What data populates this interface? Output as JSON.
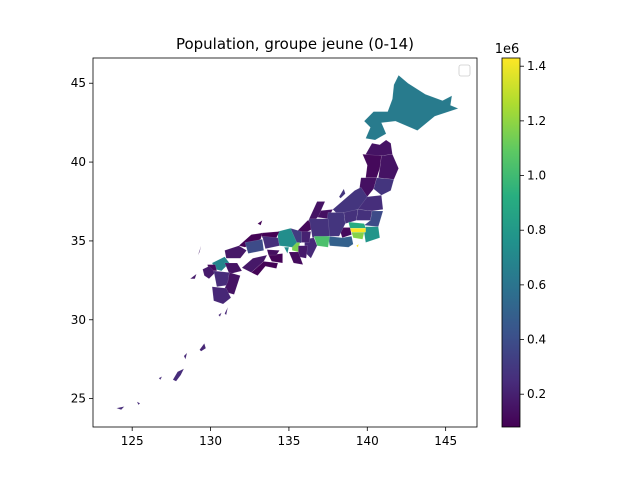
{
  "chart_data": {
    "type": "choropleth-map",
    "title": "Population, groupe jeune (0-14)",
    "xlim": [
      122.5,
      147.0
    ],
    "ylim": [
      23.2,
      46.6
    ],
    "x_ticks": [
      125,
      130,
      135,
      140,
      145
    ],
    "y_ticks": [
      25,
      30,
      35,
      40,
      45
    ],
    "colorbar": {
      "colormap": "viridis",
      "min": 80000,
      "max": 1430000,
      "ticks": [
        0.2,
        0.4,
        0.6,
        0.8,
        1.0,
        1.2,
        1.4
      ],
      "offset_text": "1e6"
    },
    "legend": {
      "position": "top-right",
      "entries": []
    },
    "regions": [
      {
        "name": "Hokkaido",
        "value": 640000
      },
      {
        "name": "Aomori",
        "value": 150000
      },
      {
        "name": "Iwate",
        "value": 150000
      },
      {
        "name": "Akita",
        "value": 110000
      },
      {
        "name": "Miyagi",
        "value": 290000
      },
      {
        "name": "Yamagata",
        "value": 140000
      },
      {
        "name": "Fukushima",
        "value": 260000
      },
      {
        "name": "Niigata",
        "value": 290000
      },
      {
        "name": "Ibaraki",
        "value": 390000
      },
      {
        "name": "Tochigi",
        "value": 270000
      },
      {
        "name": "Gunma",
        "value": 270000
      },
      {
        "name": "Saitama",
        "value": 920000
      },
      {
        "name": "Chiba",
        "value": 780000
      },
      {
        "name": "Tokyo",
        "value": 1430000
      },
      {
        "name": "Kanagawa",
        "value": 1180000
      },
      {
        "name": "Toyama",
        "value": 140000
      },
      {
        "name": "Ishikawa",
        "value": 150000
      },
      {
        "name": "Fukui",
        "value": 110000
      },
      {
        "name": "Yamanashi",
        "value": 110000
      },
      {
        "name": "Nagano",
        "value": 290000
      },
      {
        "name": "Gifu",
        "value": 280000
      },
      {
        "name": "Shizuoka",
        "value": 500000
      },
      {
        "name": "Aichi",
        "value": 1040000
      },
      {
        "name": "Mie",
        "value": 240000
      },
      {
        "name": "Shiga",
        "value": 210000
      },
      {
        "name": "Kyoto",
        "value": 320000
      },
      {
        "name": "Osaka",
        "value": 1160000
      },
      {
        "name": "Hyogo",
        "value": 740000
      },
      {
        "name": "Nara",
        "value": 180000
      },
      {
        "name": "Wakayama",
        "value": 120000
      },
      {
        "name": "Tottori",
        "value": 80000
      },
      {
        "name": "Shimane",
        "value": 90000
      },
      {
        "name": "Okayama",
        "value": 260000
      },
      {
        "name": "Hiroshima",
        "value": 390000
      },
      {
        "name": "Yamaguchi",
        "value": 170000
      },
      {
        "name": "Tokushima",
        "value": 90000
      },
      {
        "name": "Kagawa",
        "value": 130000
      },
      {
        "name": "Ehime",
        "value": 170000
      },
      {
        "name": "Kochi",
        "value": 90000
      },
      {
        "name": "Fukuoka",
        "value": 690000
      },
      {
        "name": "Saga",
        "value": 120000
      },
      {
        "name": "Nagasaki",
        "value": 180000
      },
      {
        "name": "Kumamoto",
        "value": 250000
      },
      {
        "name": "Oita",
        "value": 150000
      },
      {
        "name": "Miyazaki",
        "value": 150000
      },
      {
        "name": "Kagoshima",
        "value": 230000
      },
      {
        "name": "Okinawa",
        "value": 250000
      }
    ]
  }
}
